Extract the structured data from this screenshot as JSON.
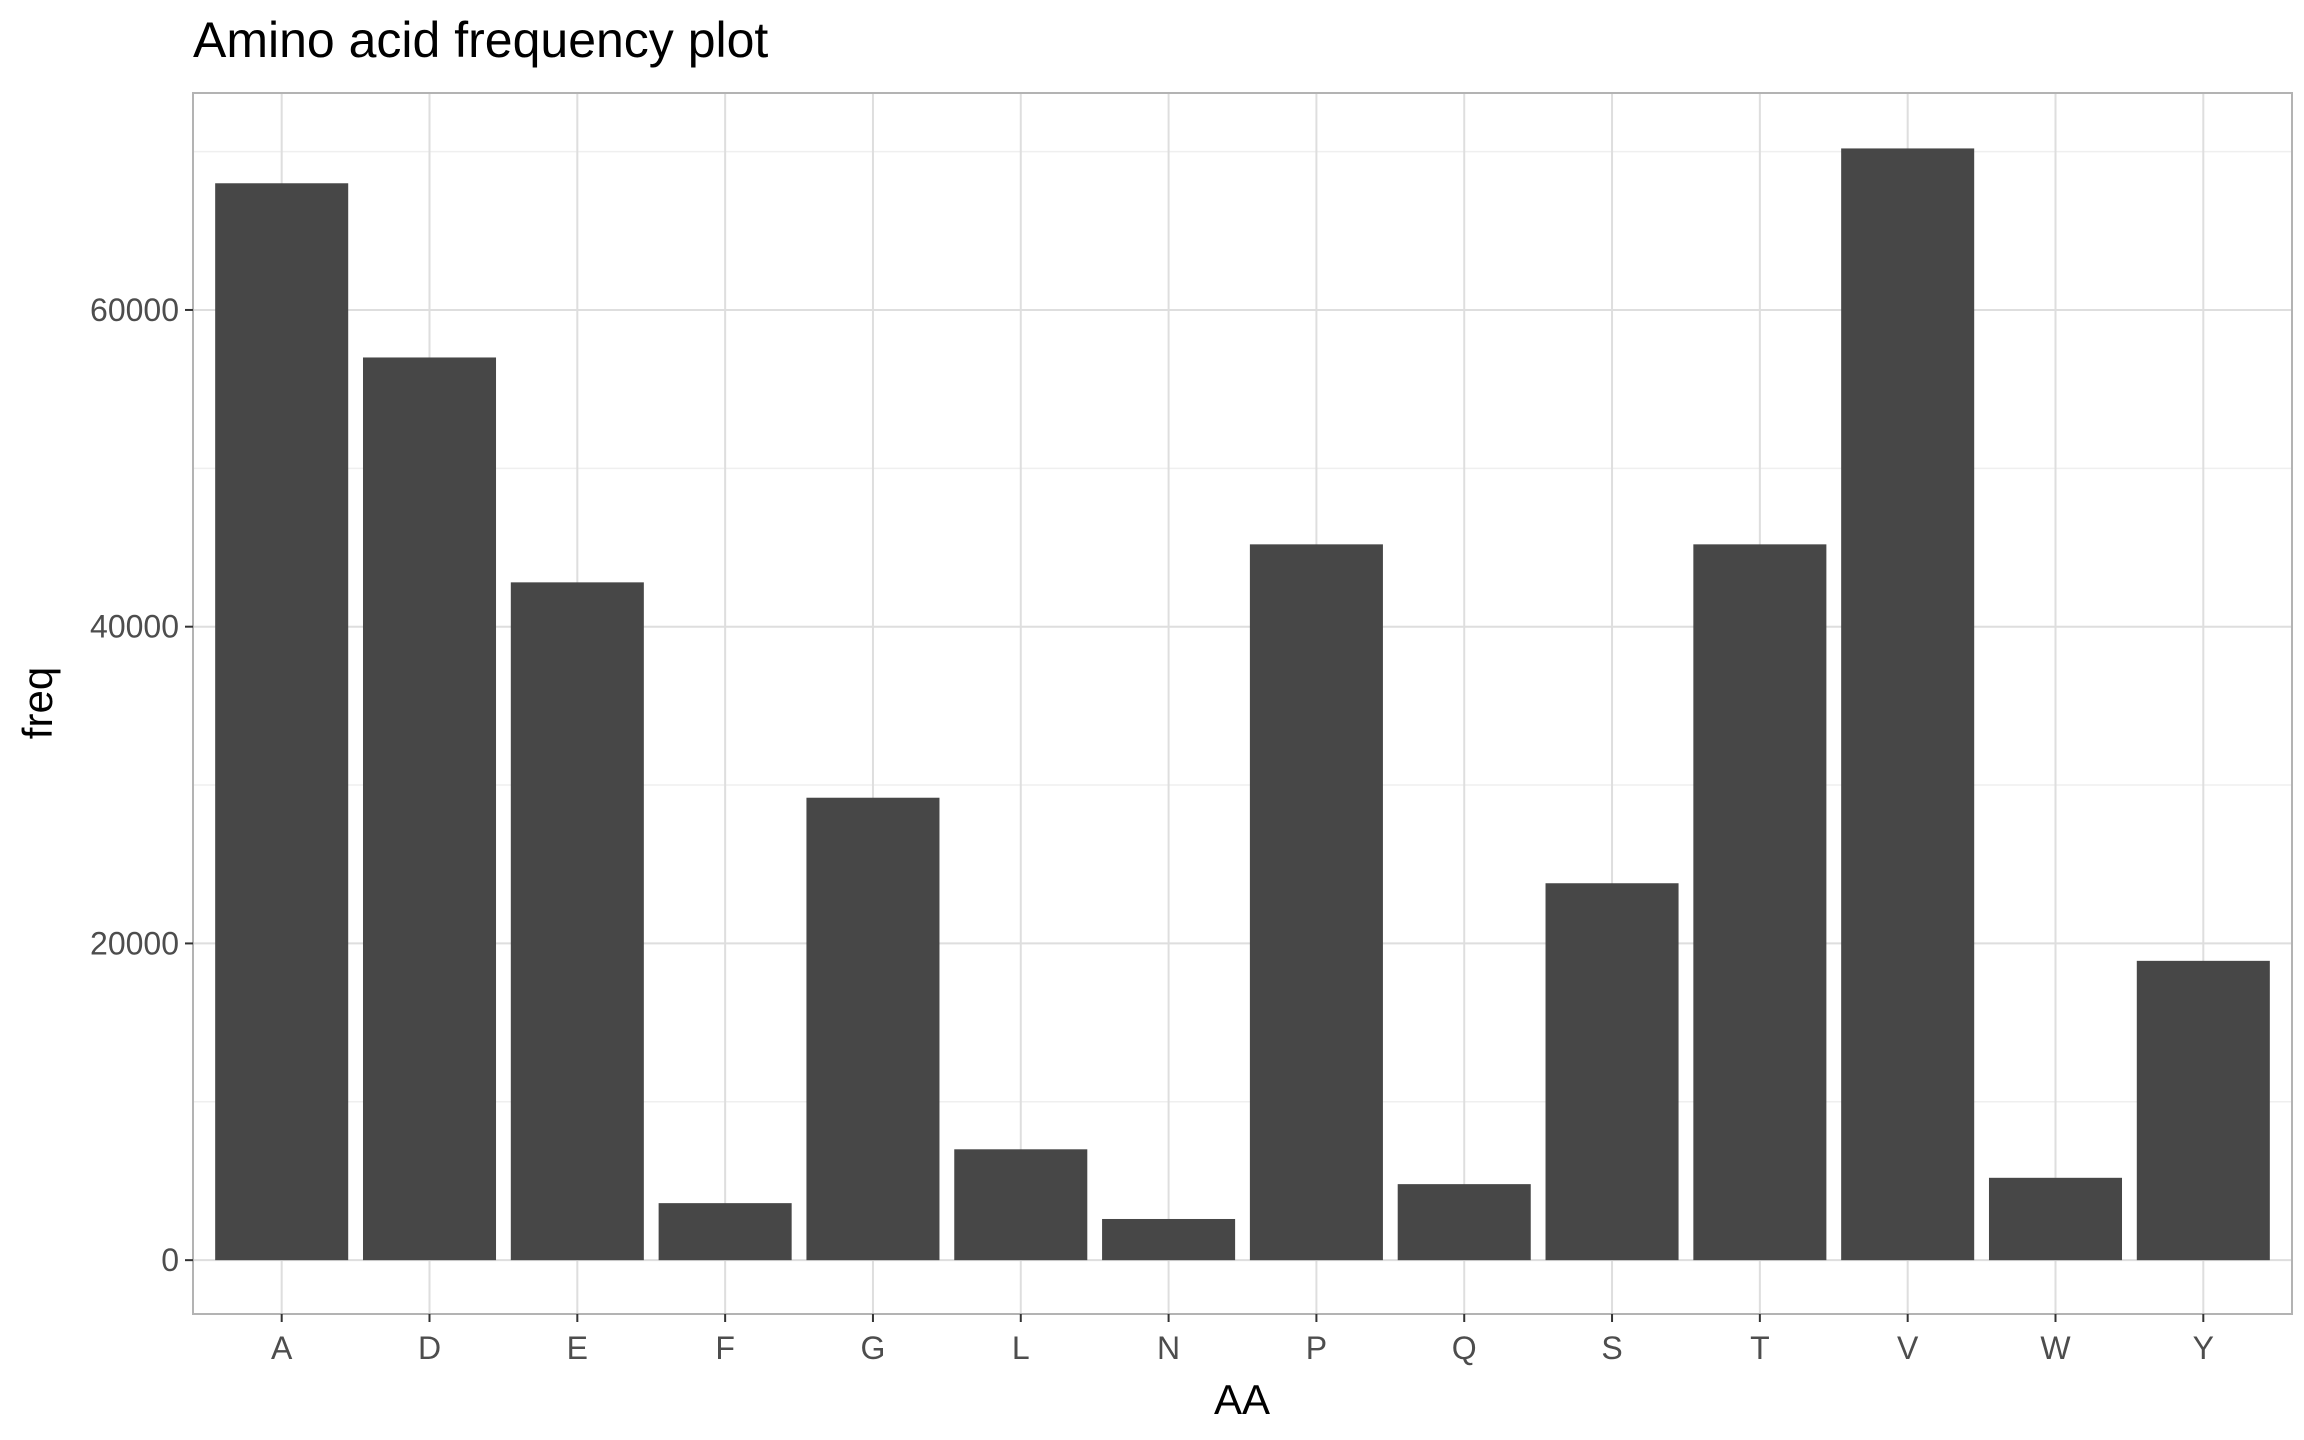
{
  "chart_data": {
    "type": "bar",
    "title": "Amino acid frequency plot",
    "xlabel": "AA",
    "ylabel": "freq",
    "categories": [
      "A",
      "D",
      "E",
      "F",
      "G",
      "L",
      "N",
      "P",
      "Q",
      "S",
      "T",
      "V",
      "W",
      "Y"
    ],
    "values": [
      68000,
      57000,
      42800,
      3600,
      29200,
      7000,
      2600,
      45200,
      4800,
      23800,
      45200,
      70200,
      5200,
      18900
    ],
    "yticks": [
      0,
      20000,
      40000,
      60000
    ],
    "ylim": [
      -3400,
      73700
    ],
    "grid": true,
    "colors": {
      "bar": "#474747",
      "grid_major": "#dedede",
      "grid_minor": "#efefef",
      "panel_border": "#b3b3b3",
      "text": "#000000",
      "tick_text": "#4d4d4d"
    }
  }
}
